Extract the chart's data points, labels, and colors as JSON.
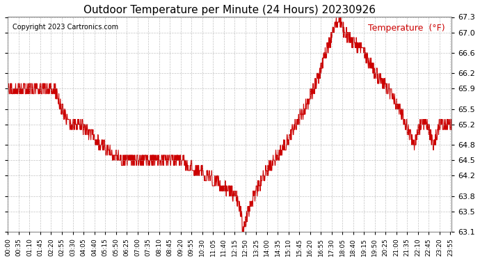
{
  "title": "Outdoor Temperature per Minute (24 Hours) 20230926",
  "copyright_text": "Copyright 2023 Cartronics.com",
  "legend_label": "Temperature  (°F)",
  "line_color": "#cc0000",
  "background_color": "#ffffff",
  "grid_color": "#aaaaaa",
  "ylim_bottom": 63.1,
  "ylim_top": 67.3,
  "yticks": [
    63.1,
    63.5,
    63.8,
    64.2,
    64.5,
    64.8,
    65.2,
    65.5,
    65.9,
    66.2,
    66.6,
    67.0,
    67.3
  ],
  "total_minutes": 1440,
  "x_tick_positions": [
    0,
    35,
    70,
    105,
    140,
    175,
    210,
    245,
    280,
    315,
    350,
    385,
    420,
    455,
    490,
    525,
    560,
    595,
    630,
    665,
    700,
    735,
    770,
    805,
    840,
    875,
    910,
    945,
    980,
    1015,
    1050,
    1085,
    1120,
    1155,
    1190,
    1225,
    1260,
    1295,
    1330,
    1365,
    1400,
    1435
  ],
  "x_tick_labels": [
    "00:00",
    "00:35",
    "01:10",
    "01:45",
    "02:20",
    "02:55",
    "03:30",
    "04:05",
    "04:40",
    "05:15",
    "05:50",
    "06:25",
    "07:00",
    "07:35",
    "08:10",
    "08:45",
    "09:20",
    "09:55",
    "10:30",
    "11:05",
    "11:40",
    "12:15",
    "12:50",
    "13:25",
    "14:00",
    "14:35",
    "15:10",
    "15:45",
    "16:20",
    "16:55",
    "17:30",
    "18:05",
    "18:40",
    "19:15",
    "19:50",
    "20:25",
    "21:00",
    "21:35",
    "22:10",
    "22:45",
    "23:20",
    "23:55"
  ]
}
